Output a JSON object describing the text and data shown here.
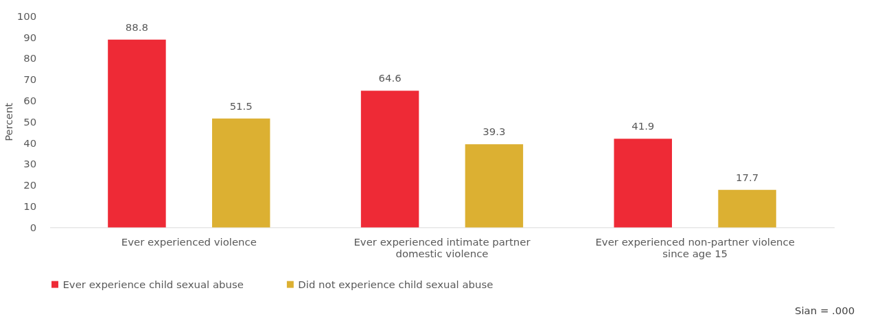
{
  "chart_data": {
    "type": "bar",
    "ylabel": "Percent",
    "categories": [
      "Ever experienced violence",
      "Ever experienced intimate partner domestic violence",
      "Ever experienced non-partner violence since age 15"
    ],
    "series": [
      {
        "name": "Ever experience child sexual abuse",
        "color": "#ee2a36",
        "values": [
          88.8,
          64.6,
          41.9
        ]
      },
      {
        "name": "Did not experience child sexual abuse",
        "color": "#dcb032",
        "values": [
          51.5,
          39.3,
          17.7
        ]
      }
    ],
    "ylim": [
      0,
      100
    ],
    "yticks": [
      0,
      10,
      20,
      30,
      40,
      50,
      60,
      70,
      80,
      90,
      100
    ],
    "data_labels": true,
    "grid": false,
    "legend": "bottom",
    "annotations": [
      "Sian = .000"
    ]
  }
}
